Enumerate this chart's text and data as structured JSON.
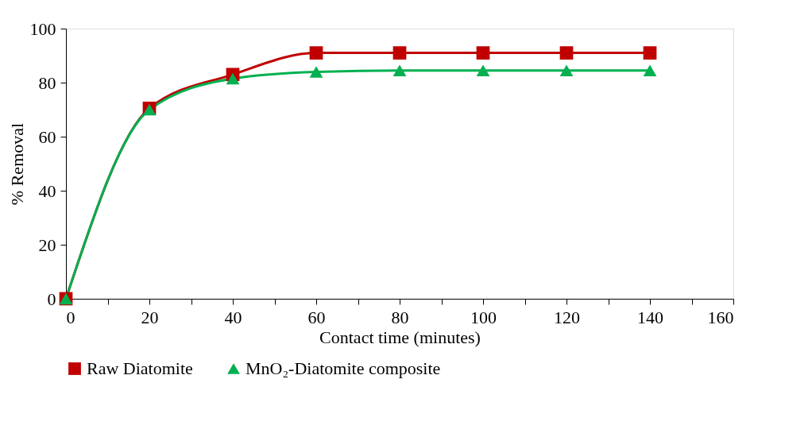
{
  "chart_data": {
    "type": "line",
    "xlabel": "Contact time (minutes)",
    "ylabel": "% Removal",
    "x": [
      0,
      20,
      40,
      60,
      80,
      100,
      120,
      140
    ],
    "series": [
      {
        "name": "Raw Diatomite",
        "color": "#c00000",
        "marker": "square",
        "values": [
          0,
          70.5,
          83,
          91,
          91,
          91,
          91,
          91
        ]
      },
      {
        "name": "MnO₂-Diatomite composite",
        "color": "#00b050",
        "marker": "triangle",
        "values": [
          0,
          70,
          81.5,
          84,
          84.5,
          84.5,
          84.5,
          84.5
        ]
      }
    ],
    "xlim": [
      0,
      160
    ],
    "xticks": [
      0,
      {
        "value": 10,
        "label": null
      },
      20,
      {
        "value": 30,
        "label": null
      },
      40,
      {
        "value": 50,
        "label": null
      },
      60,
      {
        "value": 70,
        "label": null
      },
      80,
      {
        "value": 90,
        "label": null
      },
      100,
      {
        "value": 110,
        "label": null
      },
      120,
      {
        "value": 130,
        "label": null
      },
      140,
      {
        "value": 150,
        "label": null
      },
      160
    ],
    "ylim": [
      0,
      100
    ],
    "yticks": [
      0,
      20,
      40,
      60,
      80,
      100
    ],
    "grid": false,
    "legend": "bottom",
    "line_style": "solid"
  }
}
